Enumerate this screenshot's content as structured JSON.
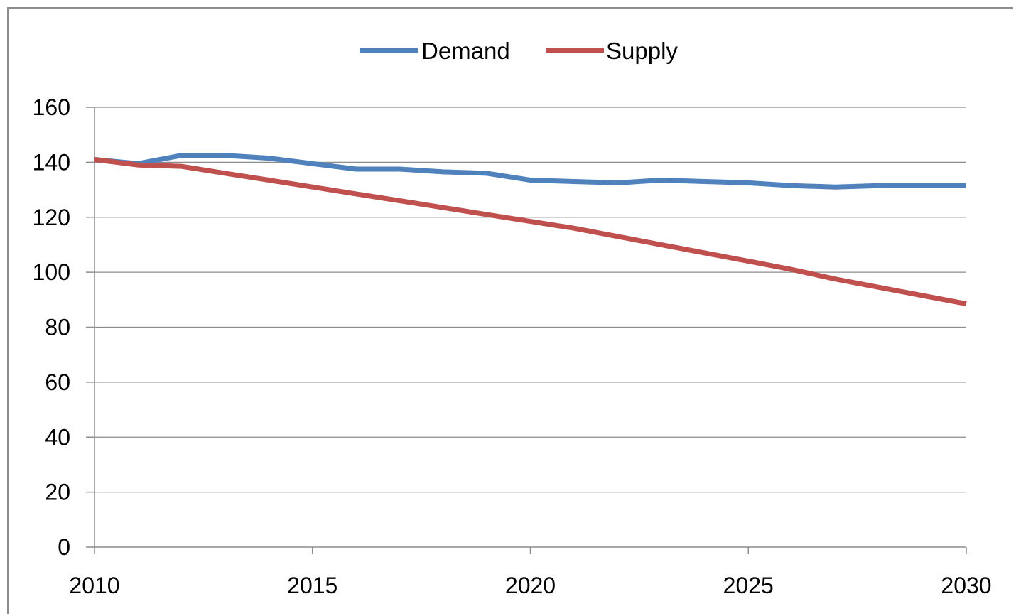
{
  "chart_data": {
    "type": "line",
    "title": "",
    "xlabel": "",
    "ylabel": "",
    "xlim": [
      2010,
      2030
    ],
    "ylim": [
      0,
      160
    ],
    "x_ticks": [
      "2010",
      "2015",
      "2020",
      "2025",
      "2030"
    ],
    "y_ticks": [
      "0",
      "20",
      "40",
      "60",
      "80",
      "100",
      "120",
      "140",
      "160"
    ],
    "grid": "horizontal",
    "legend": "top",
    "x": [
      2010,
      2011,
      2012,
      2013,
      2014,
      2015,
      2016,
      2017,
      2018,
      2019,
      2020,
      2021,
      2022,
      2023,
      2024,
      2025,
      2026,
      2027,
      2028,
      2029,
      2030
    ],
    "series": [
      {
        "name": "Demand",
        "color": "#4f81bd",
        "values": [
          141,
          139.5,
          142.5,
          142.5,
          141.5,
          139.5,
          137.5,
          137.5,
          136.5,
          136,
          133.5,
          133,
          132.5,
          133.5,
          133,
          132.5,
          131.5,
          131,
          131.5,
          131.5,
          131.5
        ]
      },
      {
        "name": "Supply",
        "color": "#c0504d",
        "values": [
          141,
          139,
          138.5,
          136,
          133.5,
          131,
          128.5,
          126,
          123.5,
          121,
          118.5,
          116,
          113,
          110,
          107,
          104,
          101,
          97.5,
          94.5,
          91.5,
          88.5
        ]
      }
    ]
  }
}
